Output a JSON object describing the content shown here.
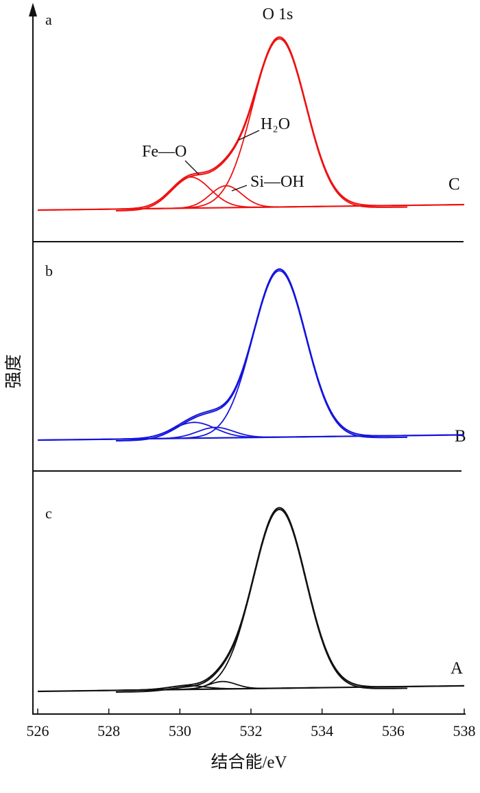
{
  "chart_data": {
    "type": "line",
    "xlabel": "结合能/eV",
    "ylabel": "强度",
    "xlim": [
      526,
      538
    ],
    "xticks": [
      526,
      528,
      530,
      532,
      534,
      536,
      538
    ],
    "yticks": [],
    "grid": false,
    "x_unit": "eV",
    "panels": [
      {
        "panel_label": "a",
        "sample_label": "C",
        "color": "#ee1111",
        "annotations": [
          "O 1s",
          "H₂O",
          "Fe—O",
          "Si—OH"
        ],
        "annotation_targets": [
          532.8,
          531.8,
          530.4,
          531.4
        ],
        "baseline": 0.03,
        "envelope_peak": 532.8,
        "envelope_max": 1.0,
        "components": [
          {
            "name": "H₂O",
            "center": 532.8,
            "height": 0.93,
            "fwhm": 1.75
          },
          {
            "name": "Fe—O",
            "center": 530.3,
            "height": 0.17,
            "fwhm": 1.3
          },
          {
            "name": "Si—OH",
            "center": 531.3,
            "height": 0.12,
            "fwhm": 1.05
          }
        ]
      },
      {
        "panel_label": "b",
        "sample_label": "B",
        "color": "#1515dd",
        "annotations": [],
        "baseline": 0.03,
        "envelope_peak": 532.8,
        "envelope_max": 1.0,
        "components": [
          {
            "name": "",
            "center": 532.8,
            "height": 0.96,
            "fwhm": 1.75
          },
          {
            "name": "",
            "center": 530.4,
            "height": 0.09,
            "fwhm": 1.4
          },
          {
            "name": "",
            "center": 531.0,
            "height": 0.06,
            "fwhm": 1.2
          }
        ]
      },
      {
        "panel_label": "c",
        "sample_label": "A",
        "color": "#111111",
        "annotations": [],
        "baseline": 0.03,
        "envelope_peak": 532.8,
        "envelope_max": 1.0,
        "components": [
          {
            "name": "",
            "center": 532.8,
            "height": 0.97,
            "fwhm": 1.75
          },
          {
            "name": "",
            "center": 531.2,
            "height": 0.04,
            "fwhm": 0.9
          },
          {
            "name": "",
            "center": 530.2,
            "height": 0.02,
            "fwhm": 1.2
          }
        ]
      }
    ]
  }
}
